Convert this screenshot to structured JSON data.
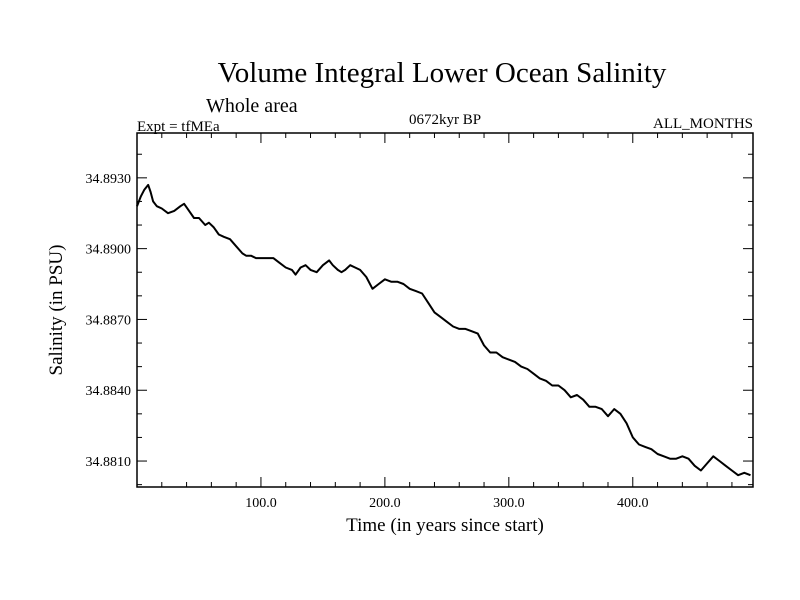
{
  "chart_data": {
    "type": "line",
    "title": "Volume Integral Lower Ocean Salinity",
    "subtitle": "Whole area",
    "left_label": "Expt = tfMEa",
    "center_label": "0672kyr BP",
    "right_label": "ALL_MONTHS",
    "xlabel": "Time (in years since start)",
    "ylabel": "Salinity (in PSU)",
    "xlim": [
      0,
      497
    ],
    "ylim": [
      34.8799,
      34.8949
    ],
    "xticks": [
      100,
      200,
      300,
      400
    ],
    "xtick_labels": [
      "100.0",
      "200.0",
      "300.0",
      "400.0"
    ],
    "yticks": [
      34.881,
      34.884,
      34.887,
      34.89,
      34.893
    ],
    "ytick_labels": [
      "34.8810",
      "34.8840",
      "34.8870",
      "34.8900",
      "34.8930"
    ],
    "grid": false,
    "legend": "none",
    "line_color": "#000000",
    "series": [
      {
        "x": [
          0,
          3,
          6,
          9,
          11,
          13,
          16,
          20,
          25,
          30,
          35,
          38,
          42,
          46,
          50,
          55,
          58,
          62,
          66,
          70,
          75,
          80,
          85,
          88,
          92,
          96,
          100,
          105,
          110,
          115,
          120,
          125,
          128,
          132,
          136,
          140,
          145,
          150,
          155,
          158,
          162,
          165,
          168,
          172,
          176,
          180,
          185,
          190,
          195,
          200,
          205,
          210,
          215,
          220,
          225,
          230,
          235,
          240,
          245,
          250,
          255,
          260,
          265,
          270,
          275,
          280,
          285,
          290,
          295,
          300,
          305,
          310,
          315,
          320,
          325,
          330,
          335,
          340,
          345,
          350,
          355,
          360,
          365,
          370,
          375,
          380,
          385,
          390,
          395,
          400,
          405,
          410,
          415,
          420,
          425,
          430,
          435,
          440,
          445,
          450,
          455,
          460,
          465,
          470,
          475,
          480,
          485,
          490,
          495
        ],
        "y": [
          34.8918,
          34.8922,
          34.8925,
          34.8927,
          34.8924,
          34.892,
          34.8918,
          34.8917,
          34.8915,
          34.8916,
          34.8918,
          34.8919,
          34.8916,
          34.8913,
          34.8913,
          34.891,
          34.8911,
          34.8909,
          34.8906,
          34.8905,
          34.8904,
          34.8901,
          34.8898,
          34.8897,
          34.8897,
          34.8896,
          34.8896,
          34.8896,
          34.8896,
          34.8894,
          34.8892,
          34.8891,
          34.8889,
          34.8892,
          34.8893,
          34.8891,
          34.889,
          34.8893,
          34.8895,
          34.8893,
          34.8891,
          34.889,
          34.8891,
          34.8893,
          34.8892,
          34.8891,
          34.8888,
          34.8883,
          34.8885,
          34.8887,
          34.8886,
          34.8886,
          34.8885,
          34.8883,
          34.8882,
          34.8881,
          34.8877,
          34.8873,
          34.8871,
          34.8869,
          34.8867,
          34.8866,
          34.8866,
          34.8865,
          34.8864,
          34.8859,
          34.8856,
          34.8856,
          34.8854,
          34.8853,
          34.8852,
          34.885,
          34.8849,
          34.8847,
          34.8845,
          34.8844,
          34.8842,
          34.8842,
          34.884,
          34.8837,
          34.8838,
          34.8836,
          34.8833,
          34.8833,
          34.8832,
          34.8829,
          34.8832,
          34.883,
          34.8826,
          34.882,
          34.8817,
          34.8816,
          34.8815,
          34.8813,
          34.8812,
          34.8811,
          34.8811,
          34.8812,
          34.8811,
          34.8808,
          34.8806,
          34.8809,
          34.8812,
          34.881,
          34.8808,
          34.8806,
          34.8804,
          34.8805,
          34.8804
        ]
      }
    ]
  }
}
